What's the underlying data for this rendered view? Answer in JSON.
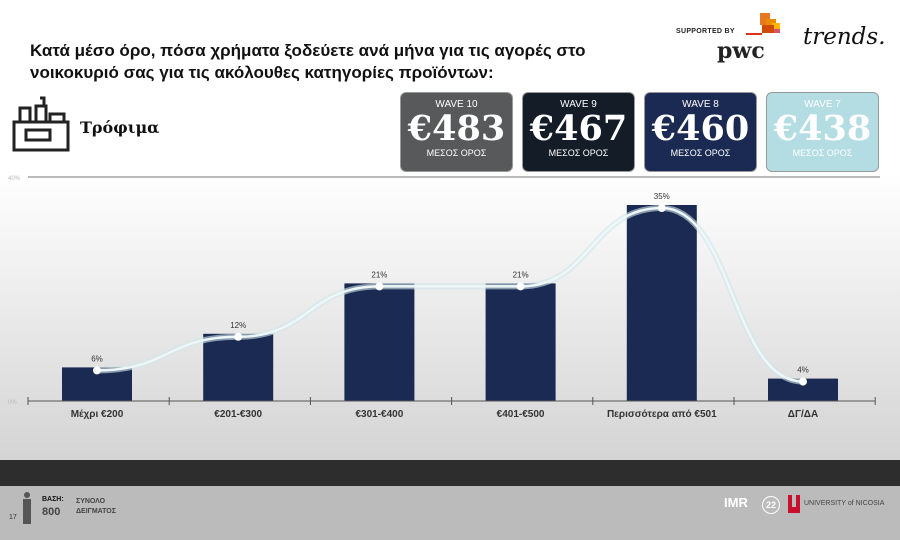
{
  "title": "Κατά μέσο όρο, πόσα χρήματα ξοδεύετε ανά μήνα για τις αγορές στο νοικοκυριό σας για τις ακόλουθες κατηγορίες προϊόντων:",
  "sponsor": {
    "supported_by": "SUPPORTED BY",
    "pwc": "pwc",
    "trends": "trends."
  },
  "category": "Τρόφιμα",
  "waves": [
    {
      "label": "WAVE 10",
      "value": "€483",
      "sub": "ΜΕΣΟΣ ΟΡΟΣ",
      "bg": "#58595b",
      "fg": "#ffffff"
    },
    {
      "label": "WAVE 9",
      "value": "€467",
      "sub": "ΜΕΣΟΣ ΟΡΟΣ",
      "bg": "#141c28",
      "fg": "#ffffff"
    },
    {
      "label": "WAVE 8",
      "value": "€460",
      "sub": "ΜΕΣΟΣ ΟΡΟΣ",
      "bg": "#1b2a52",
      "fg": "#ffffff"
    },
    {
      "label": "WAVE 7",
      "value": "€438",
      "sub": "ΜΕΣΟΣ ΟΡΟΣ",
      "bg": "#b3dde3",
      "fg": "#ffffff"
    }
  ],
  "chart_data": {
    "type": "bar",
    "categories": [
      "Μέχρι €200",
      "€201-€300",
      "€301-€400",
      "€401-€500",
      "Περισσότερα από €501",
      "ΔΓ/ΔΑ"
    ],
    "values": [
      6,
      12,
      21,
      21,
      35,
      4
    ],
    "labels": [
      "6%",
      "12%",
      "21%",
      "21%",
      "35%",
      "4%"
    ],
    "ylim": [
      0,
      40
    ],
    "yticks": [
      "0%",
      "40%"
    ],
    "bar_color": "#1b2a52",
    "line_overlay": true
  },
  "footer": {
    "page": "17",
    "base_label": "ΒΑΣΗ:",
    "base_value": "800",
    "sample1": "ΣΥΝΟΛΟ",
    "sample2": "ΔΕΙΓΜΑΤΟΣ",
    "imr": "IMR",
    "anniv": "22",
    "university": "UNIVERSITY of NICOSIA"
  }
}
